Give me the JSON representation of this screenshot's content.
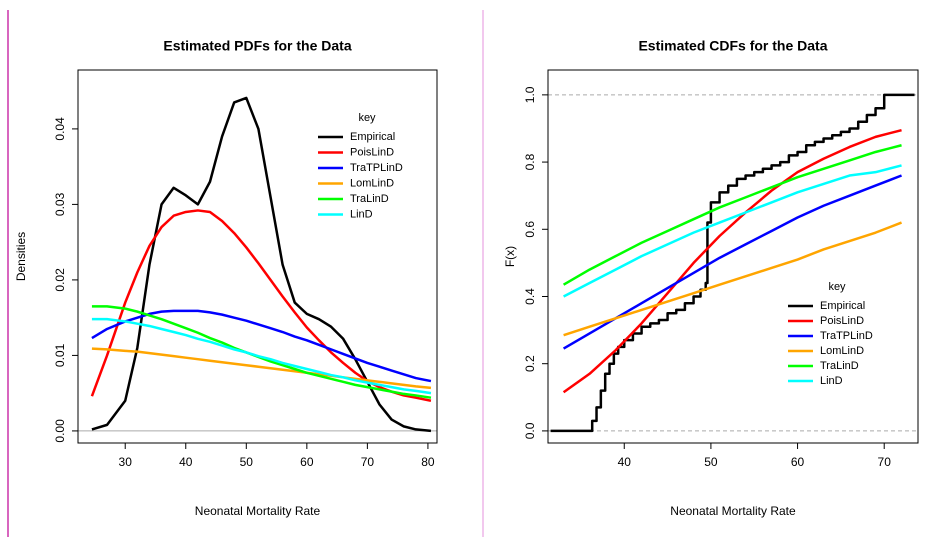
{
  "chart_data": [
    {
      "type": "line",
      "title": "Estimated PDFs for the Data",
      "x_label": "Neonatal Mortality Rate",
      "y_label": "Densities",
      "legend_title": "key",
      "legend": "topright",
      "hlines": [
        0
      ],
      "hline_style": "solid",
      "xlim": [
        22.2,
        81.5
      ],
      "ylim": [
        -0.0016,
        0.0478
      ],
      "xticks": [
        30,
        40,
        50,
        60,
        70,
        80
      ],
      "yticks": [
        {
          "value": 0,
          "label": "0.00"
        },
        {
          "value": 0.01,
          "label": "0.01"
        },
        {
          "value": 0.02,
          "label": "0.02"
        },
        {
          "value": 0.03,
          "label": "0.03"
        },
        {
          "value": 0.04,
          "label": "0.04"
        }
      ],
      "x": [
        24.5,
        27,
        30,
        32,
        34,
        36,
        38,
        40,
        42,
        44,
        46,
        48,
        50,
        52,
        54,
        56,
        58,
        60,
        62,
        64,
        66,
        68,
        70,
        72,
        74,
        76,
        78,
        80.5
      ],
      "series": [
        {
          "name": "Empirical",
          "color": "#000000",
          "values": [
            0.0002,
            0.0008,
            0.004,
            0.011,
            0.022,
            0.03,
            0.0322,
            0.0312,
            0.03,
            0.033,
            0.039,
            0.0435,
            0.0441,
            0.04,
            0.031,
            0.022,
            0.017,
            0.0155,
            0.0148,
            0.0138,
            0.0122,
            0.0095,
            0.0065,
            0.0035,
            0.0015,
            0.0006,
            0.0002,
            0.0
          ]
        },
        {
          "name": "PoisLinD",
          "color": "#ff0000",
          "values": [
            0.0046,
            0.01,
            0.017,
            0.021,
            0.0245,
            0.027,
            0.0285,
            0.029,
            0.0292,
            0.029,
            0.0278,
            0.0262,
            0.0243,
            0.0222,
            0.02,
            0.0178,
            0.0157,
            0.0137,
            0.012,
            0.0104,
            0.009,
            0.0077,
            0.0066,
            0.0058,
            0.0052,
            0.0047,
            0.0044,
            0.004
          ]
        },
        {
          "name": "TraTPLinD",
          "color": "#0000ff",
          "values": [
            0.0123,
            0.0135,
            0.0145,
            0.015,
            0.0155,
            0.0158,
            0.0159,
            0.0159,
            0.0159,
            0.0157,
            0.0154,
            0.015,
            0.0146,
            0.0141,
            0.0136,
            0.0131,
            0.0125,
            0.012,
            0.0114,
            0.0108,
            0.0102,
            0.0096,
            0.009,
            0.0085,
            0.008,
            0.0075,
            0.007,
            0.0066
          ]
        },
        {
          "name": "LomLinD",
          "color": "#ffa500",
          "values": [
            0.0109,
            0.0108,
            0.0106,
            0.0105,
            0.0103,
            0.0101,
            0.0099,
            0.0097,
            0.0095,
            0.0093,
            0.0091,
            0.0089,
            0.0087,
            0.0085,
            0.0083,
            0.0081,
            0.0079,
            0.0077,
            0.0075,
            0.0073,
            0.0071,
            0.0069,
            0.0067,
            0.0065,
            0.0063,
            0.0061,
            0.0059,
            0.0057
          ]
        },
        {
          "name": "TraLinD",
          "color": "#00ff00",
          "values": [
            0.0165,
            0.0165,
            0.0162,
            0.0158,
            0.0153,
            0.0148,
            0.0142,
            0.0136,
            0.013,
            0.0123,
            0.0117,
            0.011,
            0.0104,
            0.0098,
            0.0092,
            0.0087,
            0.0082,
            0.0077,
            0.0073,
            0.0069,
            0.0065,
            0.0061,
            0.0058,
            0.0055,
            0.0052,
            0.0049,
            0.0047,
            0.0044
          ]
        },
        {
          "name": "LinD",
          "color": "#00ffff",
          "values": [
            0.0148,
            0.0148,
            0.0145,
            0.0142,
            0.0139,
            0.0135,
            0.0131,
            0.0127,
            0.0122,
            0.0118,
            0.0113,
            0.0108,
            0.0104,
            0.0099,
            0.0095,
            0.009,
            0.0086,
            0.0082,
            0.0078,
            0.0074,
            0.0071,
            0.0067,
            0.0064,
            0.0061,
            0.0058,
            0.0055,
            0.0053,
            0.005
          ]
        }
      ]
    },
    {
      "type": "line",
      "title": "Estimated CDFs for the Data",
      "x_label": "Neonatal Mortality Rate",
      "y_label": "F(x)",
      "legend_title": "key",
      "legend": "bottomright",
      "hlines": [
        0,
        1
      ],
      "hline_style": "dashed",
      "xlim": [
        31.2,
        73.9
      ],
      "ylim": [
        -0.036,
        1.074
      ],
      "xticks": [
        40,
        50,
        60,
        70
      ],
      "yticks": [
        {
          "value": 0,
          "label": "0.0"
        },
        {
          "value": 0.2,
          "label": "0.2"
        },
        {
          "value": 0.4,
          "label": "0.4"
        },
        {
          "value": 0.6,
          "label": "0.6"
        },
        {
          "value": 0.8,
          "label": "0.8"
        },
        {
          "value": 1,
          "label": "1.0"
        }
      ],
      "series": [
        {
          "name": "Empirical",
          "color": "#000000",
          "drawstyle": "steps",
          "x": [
            31.5,
            35.8,
            36.3,
            36.8,
            37.3,
            37.8,
            38.3,
            38.8,
            39.3,
            40,
            41,
            42,
            43,
            44,
            45,
            46,
            47,
            48,
            48.8,
            49.4,
            49.6,
            50,
            51,
            52,
            53,
            54,
            55,
            56,
            57,
            58,
            59,
            60,
            61,
            62,
            63,
            64,
            65,
            66,
            67,
            68,
            69,
            70,
            73.5
          ],
          "values": [
            0,
            0,
            0.03,
            0.07,
            0.12,
            0.17,
            0.2,
            0.23,
            0.25,
            0.27,
            0.29,
            0.31,
            0.32,
            0.33,
            0.35,
            0.36,
            0.38,
            0.4,
            0.42,
            0.44,
            0.62,
            0.68,
            0.71,
            0.73,
            0.75,
            0.76,
            0.77,
            0.78,
            0.79,
            0.8,
            0.82,
            0.83,
            0.85,
            0.86,
            0.87,
            0.88,
            0.89,
            0.9,
            0.92,
            0.94,
            0.96,
            1.0,
            1.0
          ]
        },
        {
          "name": "PoisLinD",
          "color": "#ff0000",
          "x": [
            33,
            36,
            39,
            42,
            45,
            48,
            51,
            54,
            57,
            60,
            63,
            66,
            69,
            72
          ],
          "values": [
            0.115,
            0.17,
            0.24,
            0.32,
            0.41,
            0.5,
            0.58,
            0.65,
            0.715,
            0.77,
            0.81,
            0.845,
            0.875,
            0.895
          ]
        },
        {
          "name": "TraTPLinD",
          "color": "#0000ff",
          "x": [
            33,
            36,
            39,
            42,
            45,
            48,
            51,
            54,
            57,
            60,
            63,
            66,
            69,
            72
          ],
          "values": [
            0.245,
            0.29,
            0.335,
            0.38,
            0.425,
            0.47,
            0.515,
            0.555,
            0.595,
            0.635,
            0.67,
            0.7,
            0.73,
            0.76
          ]
        },
        {
          "name": "LomLinD",
          "color": "#ffa500",
          "x": [
            33,
            36,
            39,
            42,
            45,
            48,
            51,
            54,
            57,
            60,
            63,
            66,
            69,
            72
          ],
          "values": [
            0.285,
            0.31,
            0.335,
            0.36,
            0.385,
            0.41,
            0.435,
            0.46,
            0.485,
            0.51,
            0.54,
            0.565,
            0.59,
            0.62
          ]
        },
        {
          "name": "TraLinD",
          "color": "#00ff00",
          "x": [
            33,
            36,
            39,
            42,
            45,
            48,
            51,
            54,
            57,
            60,
            63,
            66,
            69,
            72
          ],
          "values": [
            0.435,
            0.48,
            0.52,
            0.56,
            0.595,
            0.63,
            0.665,
            0.695,
            0.725,
            0.755,
            0.78,
            0.805,
            0.83,
            0.85
          ]
        },
        {
          "name": "LinD",
          "color": "#00ffff",
          "x": [
            33,
            36,
            39,
            42,
            45,
            48,
            51,
            54,
            57,
            60,
            63,
            66,
            69,
            72
          ],
          "values": [
            0.4,
            0.44,
            0.48,
            0.52,
            0.555,
            0.59,
            0.62,
            0.65,
            0.68,
            0.71,
            0.735,
            0.76,
            0.77,
            0.79
          ]
        }
      ]
    }
  ]
}
